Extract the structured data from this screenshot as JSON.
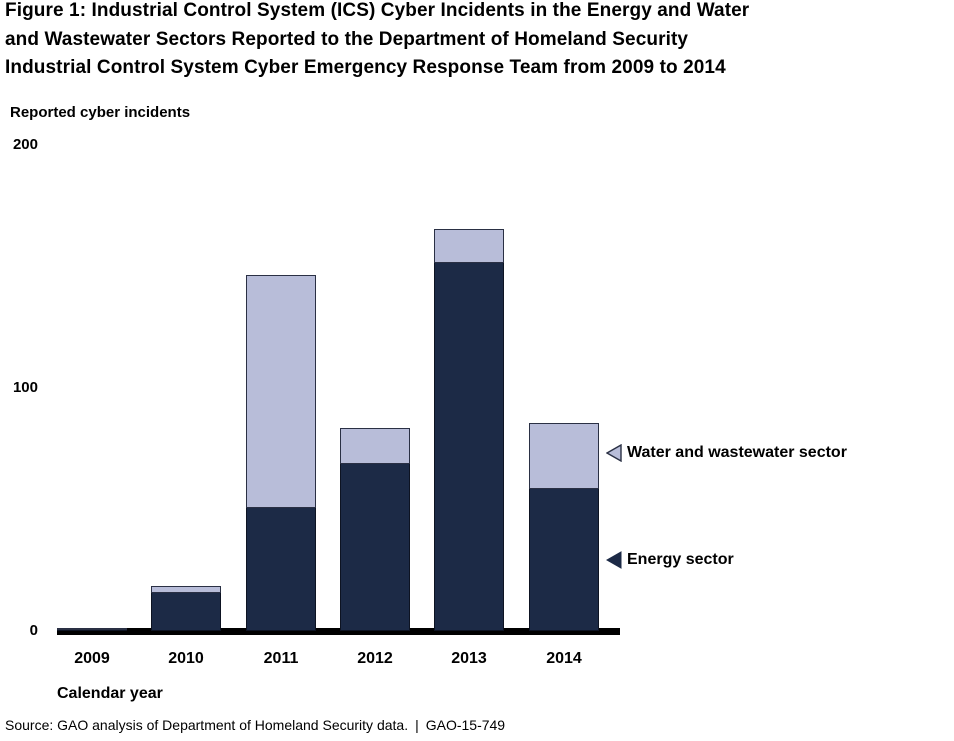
{
  "figure": {
    "title_lines": [
      "Figure 1: Industrial Control System (ICS) Cyber Incidents in the Energy and Water",
      "and Wastewater Sectors Reported to the Department of Homeland Security",
      "Industrial Control System Cyber Emergency Response Team from 2009 to 2014"
    ],
    "source": "Source: GAO analysis of Department of Homeland Security data. | GAO-15-749"
  },
  "annotations": {
    "water_label": "Water and wastewater sector",
    "energy_label": "Energy sector"
  },
  "colors": {
    "energy": "#1c2a46",
    "water": "#b8bdd9",
    "axis": "#000000",
    "water_arrow_outline": "#2a3044"
  },
  "chart_data": {
    "type": "bar",
    "stacked": true,
    "title": "Figure 1: Industrial Control System (ICS) Cyber Incidents in the Energy and Water and Wastewater Sectors Reported to the Department of Homeland Security Industrial Control System Cyber Emergency Response Team from 2009 to 2014",
    "categories": [
      "2009",
      "2010",
      "2011",
      "2012",
      "2013",
      "2014"
    ],
    "series": [
      {
        "name": "Energy sector",
        "color": "#1c2a46",
        "values": [
          1,
          16,
          51,
          69,
          152,
          59
        ]
      },
      {
        "name": "Water and wastewater sector",
        "color": "#b8bdd9",
        "values": [
          1,
          3,
          96,
          15,
          14,
          27
        ]
      }
    ],
    "xlabel": "Calendar year",
    "ylabel": "Reported cyber incidents",
    "ylim": [
      0,
      200
    ],
    "yticks": [
      0,
      100,
      200
    ],
    "grid": false,
    "legend_position": "right-annotations"
  }
}
